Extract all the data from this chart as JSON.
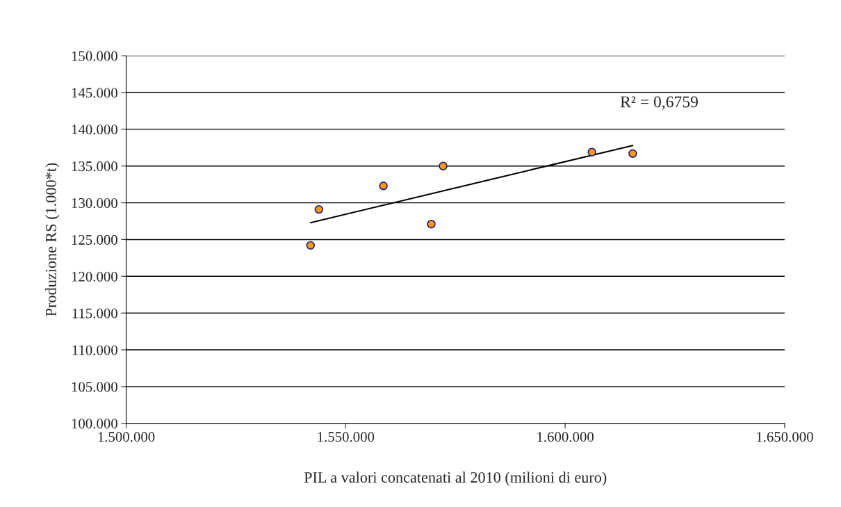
{
  "chart_data": {
    "type": "scatter",
    "xlabel": "PIL a valori concatenati al 2010 (milioni di euro)",
    "ylabel": "Produzione RS (1.000*t)",
    "series": [
      {
        "color": "#ff9900",
        "marker": "circle",
        "x": [
          1542000,
          1543900,
          1558600,
          1572200,
          1569500,
          1606100,
          1615400
        ],
        "values": [
          124200,
          129100,
          132300,
          135000,
          127100,
          136900,
          136700
        ]
      },
      {
        "type": "line",
        "color": "#000000",
        "x": [
          1542000,
          1615400
        ],
        "values": [
          127300,
          137800
        ]
      }
    ],
    "annotations": [
      "R² = 0,6759"
    ],
    "xlim": [
      1500000,
      1650000
    ],
    "xticks": [
      {
        "value": 1500000,
        "label": "1.500.000"
      },
      {
        "value": 1550000,
        "label": "1.550.000"
      },
      {
        "value": 1600000,
        "label": "1.600.000"
      },
      {
        "value": 1650000,
        "label": "1.650.000"
      }
    ],
    "ylim": [
      100000,
      150000
    ],
    "yticks": [
      {
        "value": 100000,
        "label": "100.000"
      },
      {
        "value": 105000,
        "label": "105.000"
      },
      {
        "value": 110000,
        "label": "110.000"
      },
      {
        "value": 115000,
        "label": "115.000"
      },
      {
        "value": 120000,
        "label": "120.000"
      },
      {
        "value": 125000,
        "label": "125.000"
      },
      {
        "value": 130000,
        "label": "130.000"
      },
      {
        "value": 135000,
        "label": "135.000"
      },
      {
        "value": 140000,
        "label": "140.000"
      },
      {
        "value": 145000,
        "label": "145.000"
      },
      {
        "value": 150000,
        "label": "150.000"
      }
    ],
    "grid": "y"
  }
}
